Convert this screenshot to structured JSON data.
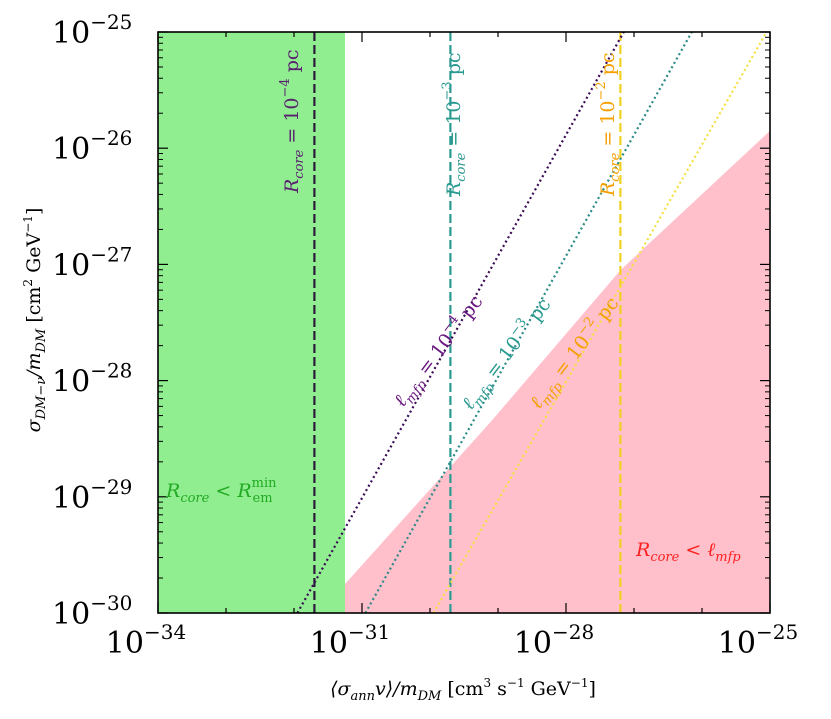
{
  "chart_data": {
    "type": "line",
    "xlabel": "⟨σannv⟩/mDM [cm³ s⁻¹ GeV⁻¹]",
    "ylabel": "σDM−ν/mDM [cm² GeV⁻¹]",
    "xscale": "log",
    "yscale": "log",
    "xlim_exp": [
      -34,
      -25
    ],
    "ylim_exp": [
      -30,
      -25
    ],
    "x_ticks": [
      {
        "exp": -34,
        "text": "10",
        "sup": "−34"
      },
      {
        "exp": -31,
        "text": "10",
        "sup": "−31"
      },
      {
        "exp": -28,
        "text": "10",
        "sup": "−28"
      },
      {
        "exp": -25,
        "text": "10",
        "sup": "−25"
      }
    ],
    "y_ticks": [
      {
        "exp": -30,
        "text": "10",
        "sup": "−30"
      },
      {
        "exp": -29,
        "text": "10",
        "sup": "−29"
      },
      {
        "exp": -28,
        "text": "10",
        "sup": "−28"
      },
      {
        "exp": -27,
        "text": "10",
        "sup": "−27"
      },
      {
        "exp": -26,
        "text": "10",
        "sup": "−26"
      },
      {
        "exp": -25,
        "text": "10",
        "sup": "−25"
      }
    ],
    "regions": [
      {
        "name": "Rcore < Rem^min",
        "label": "Rcore < Rem",
        "label_sup": "min",
        "label_sub": "em",
        "color": "#90ee90",
        "x_max_exp": -31.25,
        "polygon_exp": [
          [
            -34,
            -30
          ],
          [
            -31.25,
            -30
          ],
          [
            -31.25,
            -25
          ],
          [
            -34,
            -25
          ]
        ]
      },
      {
        "name": "Rcore < lmfp",
        "label": "Rcore < ℓmfp",
        "color": "#ffc0cb",
        "polygon_exp": [
          [
            -31.25,
            -30
          ],
          [
            -25,
            -30
          ],
          [
            -25,
            -25.85
          ],
          [
            -27.2,
            -27.05
          ],
          [
            -29.1,
            -28.35
          ],
          [
            -31.25,
            -29.75
          ]
        ]
      }
    ],
    "vertical_lines": [
      {
        "label": "Rcore = 10⁻⁴ pc",
        "x_exp": -31.7,
        "color": "#2c1a3a",
        "dash": "dashed"
      },
      {
        "label": "Rcore = 10⁻³ pc",
        "x_exp": -29.7,
        "color": "#2a9a90",
        "dash": "dashed"
      },
      {
        "label": "Rcore = 10⁻² pc",
        "x_exp": -27.2,
        "color": "#f0d020",
        "dash": "dashed"
      }
    ],
    "diagonal_lines": [
      {
        "label": "ℓmfp = 10⁻⁴ pc",
        "points_exp": [
          [
            -31.95,
            -30
          ],
          [
            -27.15,
            -25
          ]
        ],
        "color": "#3a0a55",
        "dash": "dotted"
      },
      {
        "label": "ℓmfp = 10⁻³ pc",
        "points_exp": [
          [
            -30.95,
            -30
          ],
          [
            -26.15,
            -25
          ]
        ],
        "color": "#2a8a88",
        "dash": "dotted"
      },
      {
        "label": "ℓmfp = 10⁻² pc",
        "points_exp": [
          [
            -29.95,
            -30
          ],
          [
            -25.05,
            -25
          ]
        ],
        "color": "#f5e040",
        "dash": "dotted"
      }
    ],
    "annotations": [
      {
        "text": "R",
        "sub": "core",
        "rest": " = 10",
        "sup": "−4",
        "unit": " pc",
        "color": "#5a2070"
      },
      {
        "text": "R",
        "sub": "core",
        "rest": " = 10",
        "sup": "−3",
        "unit": " pc",
        "color": "#2a9a90"
      },
      {
        "text": "R",
        "sub": "core",
        "rest": " = 10",
        "sup": "−2",
        "unit": " pc",
        "color": "#f5a000"
      },
      {
        "text": "ℓ",
        "sub": "mfp",
        "rest": " = 10",
        "sup": "−4",
        "unit": " pc",
        "color": "#6a1a80"
      },
      {
        "text": "ℓ",
        "sub": "mfp",
        "rest": " = 10",
        "sup": "−3",
        "unit": " pc",
        "color": "#2a9a90"
      },
      {
        "text": "ℓ",
        "sub": "mfp",
        "rest": " = 10",
        "sup": "−2",
        "unit": " pc",
        "color": "#f5a000"
      },
      {
        "text": "R",
        "sub": "core",
        "rest": " < R",
        "sup": "min",
        "sub2": "em",
        "color": "#22aa22"
      },
      {
        "text": "R",
        "sub": "core",
        "rest": " < ℓ",
        "sub2": "mfp",
        "color": "#ff2020"
      }
    ],
    "grid": false,
    "legend": "none"
  }
}
